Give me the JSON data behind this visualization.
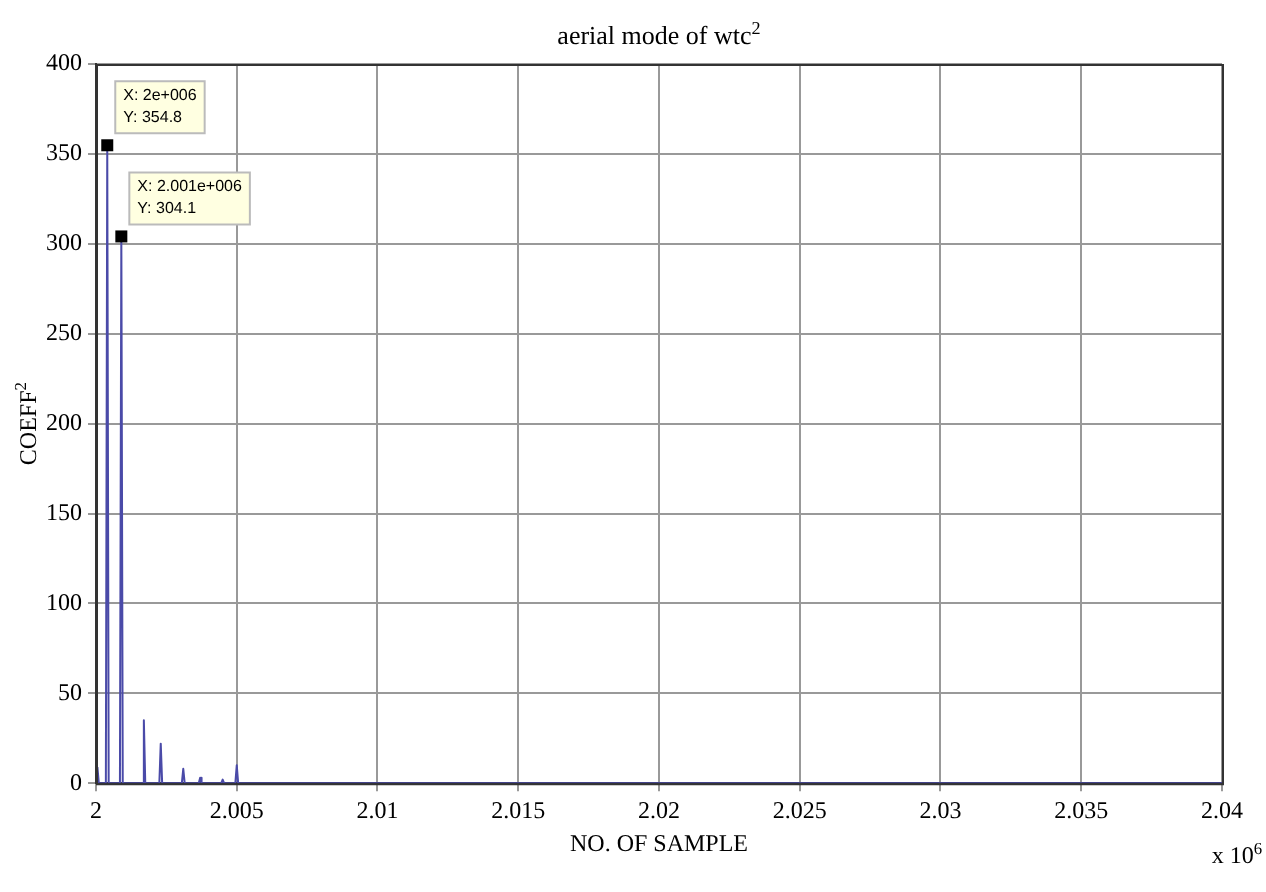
{
  "chart_data": {
    "type": "line",
    "title": "aerial mode of wtc$^{2}$",
    "xlabel": "NO. OF SAMPLE",
    "ylabel": "COEFF$^{2}$",
    "x": [
      2.00005,
      2.0001,
      2.00035,
      2.0004,
      2.00045,
      2.00085,
      2.0009,
      2.00095,
      2.00165,
      2.0017,
      2.00175,
      2.00225,
      2.0023,
      2.00235,
      2.00305,
      2.0031,
      2.00315,
      2.00365,
      2.0037,
      2.00375,
      2.00445,
      2.0045,
      2.00455,
      2.00495,
      2.005,
      2.00505,
      2.04
    ],
    "series": [
      {
        "color": "#4a4aa8",
        "values": [
          9,
          0,
          0,
          354.8,
          0,
          0,
          304.1,
          0,
          0,
          35,
          0,
          0,
          22,
          0,
          0,
          8,
          0,
          0,
          3,
          0,
          0,
          2,
          0,
          0,
          10,
          0,
          0
        ]
      }
    ],
    "xlim": [
      2,
      2.04
    ],
    "xticks": [
      2,
      2.005,
      2.01,
      2.015,
      2.02,
      2.025,
      2.03,
      2.035,
      2.04
    ],
    "ylim": [
      0,
      400
    ],
    "yticks": [
      0,
      50,
      100,
      150,
      200,
      250,
      300,
      350,
      400
    ],
    "grid": true,
    "marker": "none",
    "line_style": "solid",
    "legend": false,
    "annotations": [
      {
        "text": "X: 2e+006\nY: 354.8",
        "x": 2.0004,
        "y": 354.8
      },
      {
        "text": "X: 2.001e+006\nY: 304.1",
        "x": 2.0009,
        "y": 304.1
      },
      "x 10$^{6}$"
    ]
  }
}
